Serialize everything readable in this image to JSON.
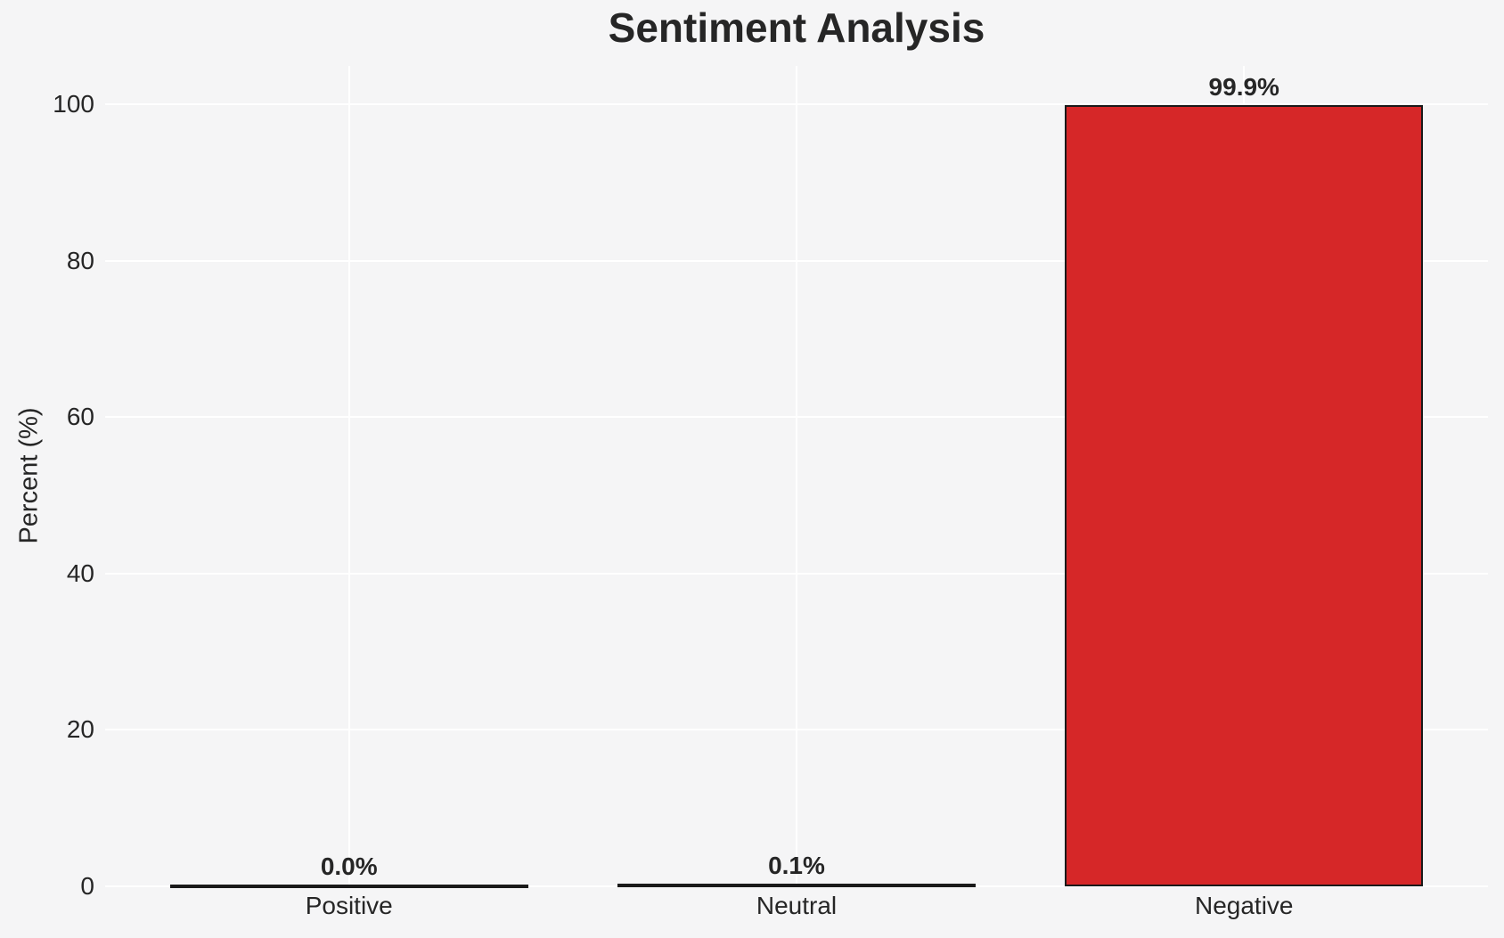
{
  "chart_data": {
    "type": "bar",
    "title": "Sentiment Analysis",
    "xlabel": "",
    "ylabel": "Percent (%)",
    "categories": [
      "Positive",
      "Neutral",
      "Negative"
    ],
    "values": [
      0.0,
      0.1,
      99.9
    ],
    "value_labels": [
      "0.0%",
      "0.1%",
      "99.9%"
    ],
    "yticks": [
      0,
      20,
      40,
      60,
      80,
      100
    ],
    "ylim": [
      0,
      104.9
    ],
    "grid": true,
    "legend": "none",
    "colors": {
      "bar_fill": "#d62728",
      "bar_edge": "#1a1a1a",
      "background": "#f5f5f6",
      "gridline": "#ffffff",
      "text": "#262626"
    }
  }
}
